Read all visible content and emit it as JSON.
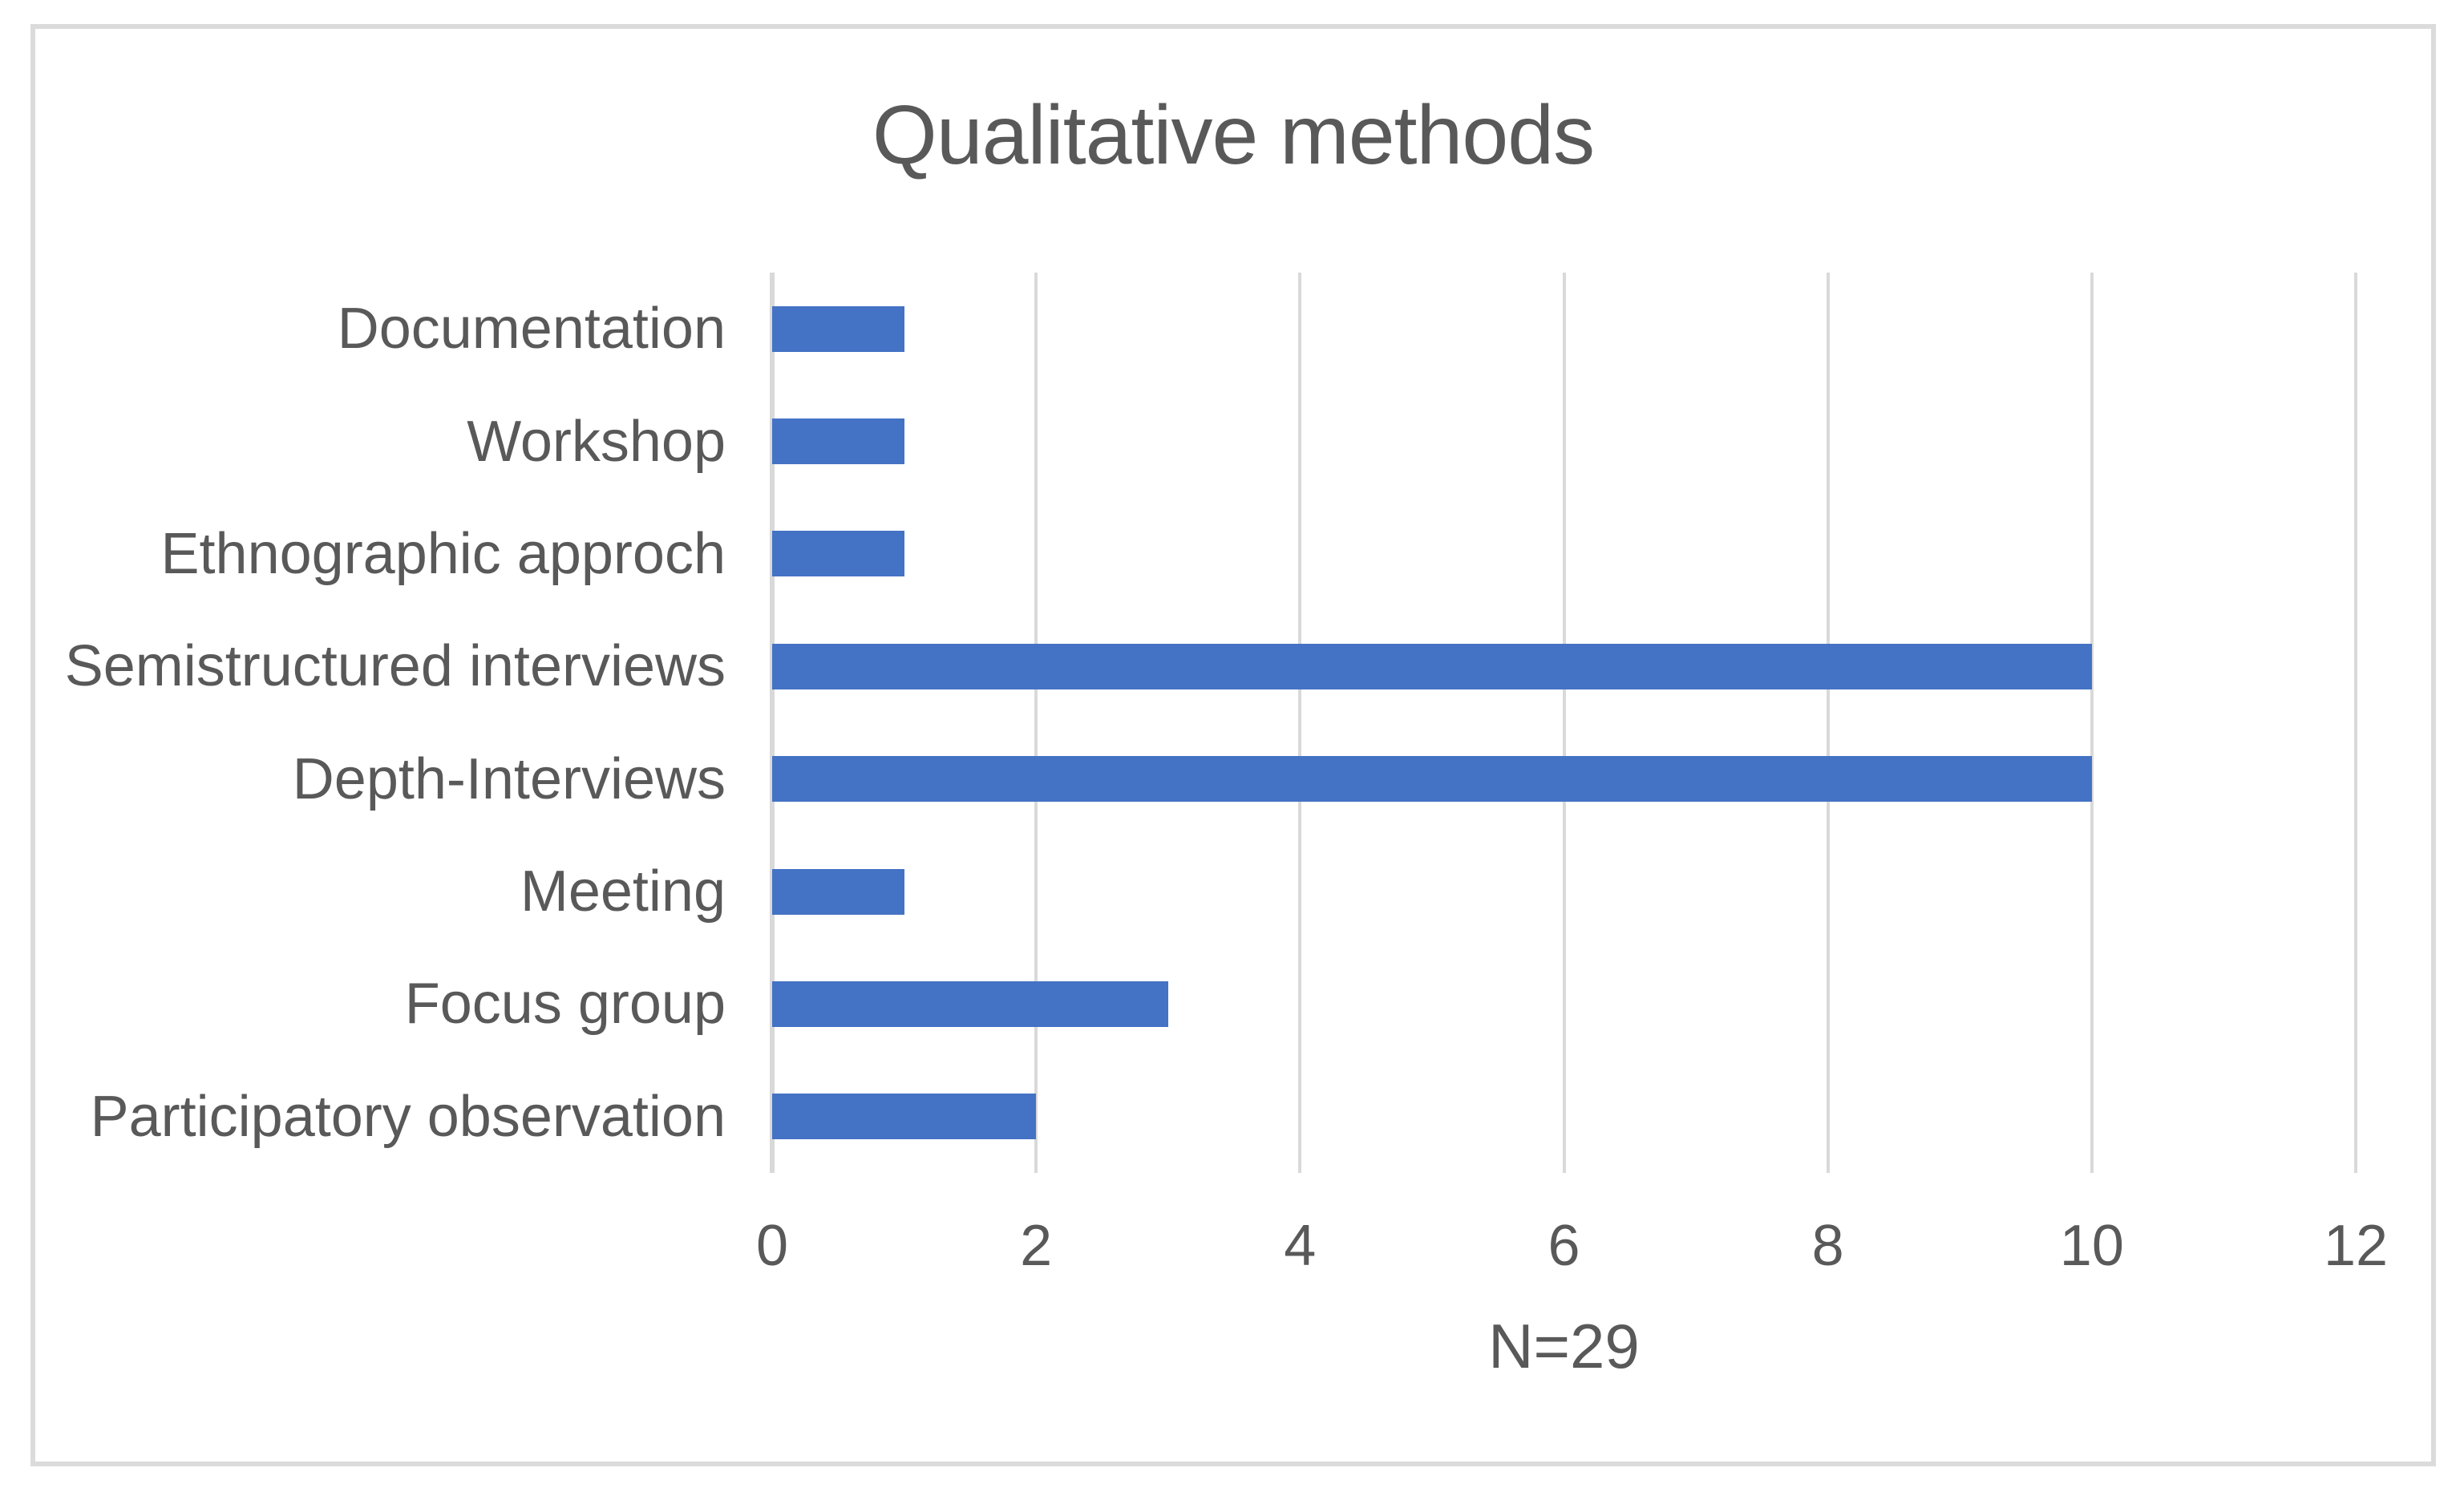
{
  "chart_data": {
    "type": "bar",
    "orientation": "horizontal",
    "title": "Qualitative methods",
    "categories": [
      "Documentation",
      "Workshop",
      "Ethnographic approch",
      "Semistructured interviews",
      "Depth-Interviews",
      "Meeting",
      "Focus group",
      "Participatory observation"
    ],
    "values": [
      1,
      1,
      1,
      10,
      10,
      1,
      3,
      2
    ],
    "xticks": [
      0,
      2,
      4,
      6,
      8,
      10,
      12
    ],
    "xlim": [
      0,
      12
    ],
    "grid": true,
    "legend": false,
    "footnote": "N=29",
    "colors": {
      "bar": "#4472C4",
      "gridline": "#D9D9D9",
      "text": "#595959",
      "frame_border": "#DBDBDB",
      "background": "#FFFFFF"
    }
  }
}
